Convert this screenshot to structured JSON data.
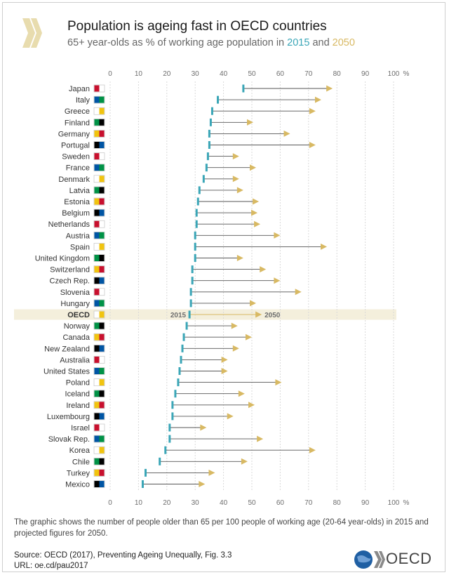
{
  "header": {
    "title": "Population is ageing fast in OECD countries",
    "subtitle_prefix": "65+ year-olds as % of working age population in ",
    "year_2015": "2015",
    "subtitle_and": " and ",
    "year_2050": "2050"
  },
  "colors": {
    "y2015": "#3aa6b7",
    "y2050": "#d8b963",
    "oecd_highlight": "#f4efdc",
    "grid": "#d9d9d9"
  },
  "chart_data": {
    "type": "dumbbell",
    "title": "Population is ageing fast in OECD countries",
    "subtitle": "65+ year-olds as % of working age population in 2015 and 2050",
    "x_ticks": [
      "0",
      "10",
      "20",
      "30",
      "40",
      "50",
      "60",
      "70",
      "80",
      "90",
      "100"
    ],
    "x_unit": "%",
    "xlim": [
      0,
      100
    ],
    "series": [
      {
        "name": "2015"
      },
      {
        "name": "2050"
      }
    ],
    "highlight_labels": {
      "start": "2015",
      "end": "2050"
    },
    "rows": [
      {
        "country": "Japan",
        "y2015": 47,
        "y2050": 78
      },
      {
        "country": "Italy",
        "y2015": 38,
        "y2050": 74
      },
      {
        "country": "Greece",
        "y2015": 36,
        "y2050": 72
      },
      {
        "country": "Finland",
        "y2015": 35.5,
        "y2050": 50
      },
      {
        "country": "Germany",
        "y2015": 35,
        "y2050": 63
      },
      {
        "country": "Portugal",
        "y2015": 35,
        "y2050": 72
      },
      {
        "country": "Sweden",
        "y2015": 34.5,
        "y2050": 45
      },
      {
        "country": "France",
        "y2015": 34,
        "y2050": 51
      },
      {
        "country": "Denmark",
        "y2015": 33,
        "y2050": 45
      },
      {
        "country": "Latvia",
        "y2015": 31.5,
        "y2050": 46.5
      },
      {
        "country": "Estonia",
        "y2015": 31,
        "y2050": 52
      },
      {
        "country": "Belgium",
        "y2015": 30.5,
        "y2050": 51.5
      },
      {
        "country": "Netherlands",
        "y2015": 30.5,
        "y2050": 52.5
      },
      {
        "country": "Austria",
        "y2015": 30,
        "y2050": 59.5
      },
      {
        "country": "Spain",
        "y2015": 30,
        "y2050": 76
      },
      {
        "country": "United Kingdom",
        "y2015": 30,
        "y2050": 46.5
      },
      {
        "country": "Switzerland",
        "y2015": 29,
        "y2050": 54.5
      },
      {
        "country": "Czech Rep.",
        "y2015": 29,
        "y2050": 59.5
      },
      {
        "country": "Slovenia",
        "y2015": 28.5,
        "y2050": 67
      },
      {
        "country": "Hungary",
        "y2015": 28.5,
        "y2050": 51
      },
      {
        "country": "OECD",
        "y2015": 28,
        "y2050": 53,
        "highlight": true
      },
      {
        "country": "Norway",
        "y2015": 27,
        "y2050": 44.5
      },
      {
        "country": "Canada",
        "y2015": 26,
        "y2050": 49.5
      },
      {
        "country": "New Zealand",
        "y2015": 25.5,
        "y2050": 45
      },
      {
        "country": "Australia",
        "y2015": 25,
        "y2050": 41
      },
      {
        "country": "United States",
        "y2015": 24.5,
        "y2050": 41
      },
      {
        "country": "Poland",
        "y2015": 24,
        "y2050": 60
      },
      {
        "country": "Iceland",
        "y2015": 23,
        "y2050": 47
      },
      {
        "country": "Ireland",
        "y2015": 22,
        "y2050": 50.5
      },
      {
        "country": "Luxembourg",
        "y2015": 22,
        "y2050": 43
      },
      {
        "country": "Israel",
        "y2015": 21,
        "y2050": 33.5
      },
      {
        "country": "Slovak Rep.",
        "y2015": 21,
        "y2050": 53.5
      },
      {
        "country": "Korea",
        "y2015": 19.5,
        "y2050": 72
      },
      {
        "country": "Chile",
        "y2015": 17.5,
        "y2050": 48
      },
      {
        "country": "Turkey",
        "y2015": 12.5,
        "y2050": 36.5
      },
      {
        "country": "Mexico",
        "y2015": 11.5,
        "y2050": 33
      }
    ]
  },
  "footer": {
    "note": "The graphic shows the number of people older than 65 per 100 people of working age (20-64 year-olds) in 2015 and projected figures for 2050.",
    "source": "Source: OECD (2017), Preventing Ageing Unequally, Fig. 3.3",
    "url": "URL: oe.cd/pau2017",
    "logo_text": "OECD"
  }
}
